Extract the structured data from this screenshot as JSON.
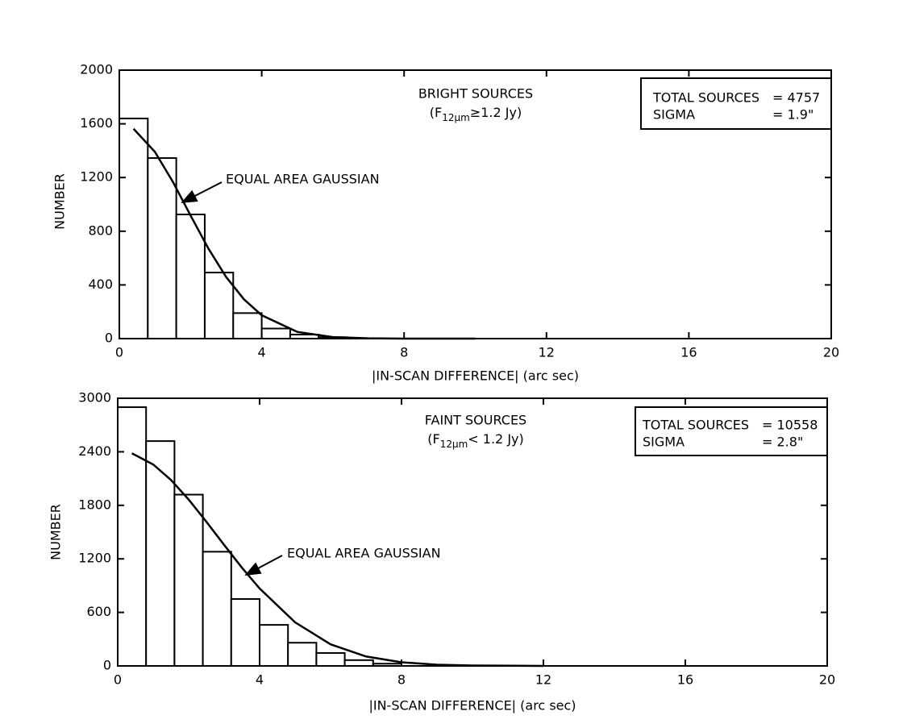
{
  "chart_data": [
    {
      "type": "histogram",
      "title": "BRIGHT SOURCES",
      "subtitle_parts": [
        "(F",
        "12μm",
        "≥1.2 Jy)"
      ],
      "x_label": "|IN-SCAN DIFFERENCE| (arc sec)",
      "y_label": "NUMBER",
      "annotation": "EQUAL AREA GAUSSIAN",
      "stats": [
        {
          "label": "TOTAL SOURCES",
          "value": "= 4757"
        },
        {
          "label": "SIGMA",
          "value": "= 1.9\""
        }
      ],
      "bins": [
        0,
        0.8,
        1.6,
        2.4,
        3.2,
        4.0,
        4.8,
        5.6,
        6.4
      ],
      "counts": [
        1640,
        1345,
        925,
        492,
        190,
        75,
        30,
        10
      ],
      "curve": {
        "x": [
          0.4,
          1,
          1.5,
          2,
          2.5,
          3,
          3.5,
          4,
          5,
          6,
          7,
          8,
          10
        ],
        "values": [
          1563,
          1391,
          1170,
          918,
          672,
          459,
          293,
          174,
          50,
          11,
          2,
          0,
          0
        ]
      },
      "color": "#000000",
      "xlim": [
        0,
        20
      ],
      "xticks": [
        0,
        4,
        8,
        12,
        16,
        20
      ],
      "ylim": [
        0,
        2000
      ],
      "yticks": [
        0,
        400,
        800,
        1200,
        1600,
        2000
      ]
    },
    {
      "type": "histogram",
      "title": "FAINT SOURCES",
      "subtitle_parts": [
        "(F",
        "12μm",
        "< 1.2 Jy)"
      ],
      "x_label": "|IN-SCAN DIFFERENCE| (arc sec)",
      "y_label": "NUMBER",
      "annotation": "EQUAL AREA GAUSSIAN",
      "stats": [
        {
          "label": "TOTAL SOURCES",
          "value": "= 10558"
        },
        {
          "label": "SIGMA",
          "value": "= 2.8\""
        }
      ],
      "bins": [
        0,
        0.8,
        1.6,
        2.4,
        3.2,
        4.0,
        4.8,
        5.6,
        6.4,
        7.2,
        8.0
      ],
      "counts": [
        2900,
        2520,
        1920,
        1280,
        750,
        460,
        260,
        145,
        65,
        25
      ],
      "curve": {
        "x": [
          0.4,
          1,
          1.5,
          2,
          2.5,
          3,
          3.5,
          4,
          5,
          6,
          7,
          8,
          9,
          10,
          12
        ],
        "values": [
          2383,
          2258,
          2085,
          1865,
          1616,
          1356,
          1102,
          868,
          489,
          242,
          106,
          41,
          14,
          4,
          0
        ]
      },
      "color": "#000000",
      "xlim": [
        0,
        20
      ],
      "xticks": [
        0,
        4,
        8,
        12,
        16,
        20
      ],
      "ylim": [
        0,
        3000
      ],
      "yticks": [
        0,
        600,
        1200,
        1800,
        2400,
        3000
      ]
    }
  ]
}
